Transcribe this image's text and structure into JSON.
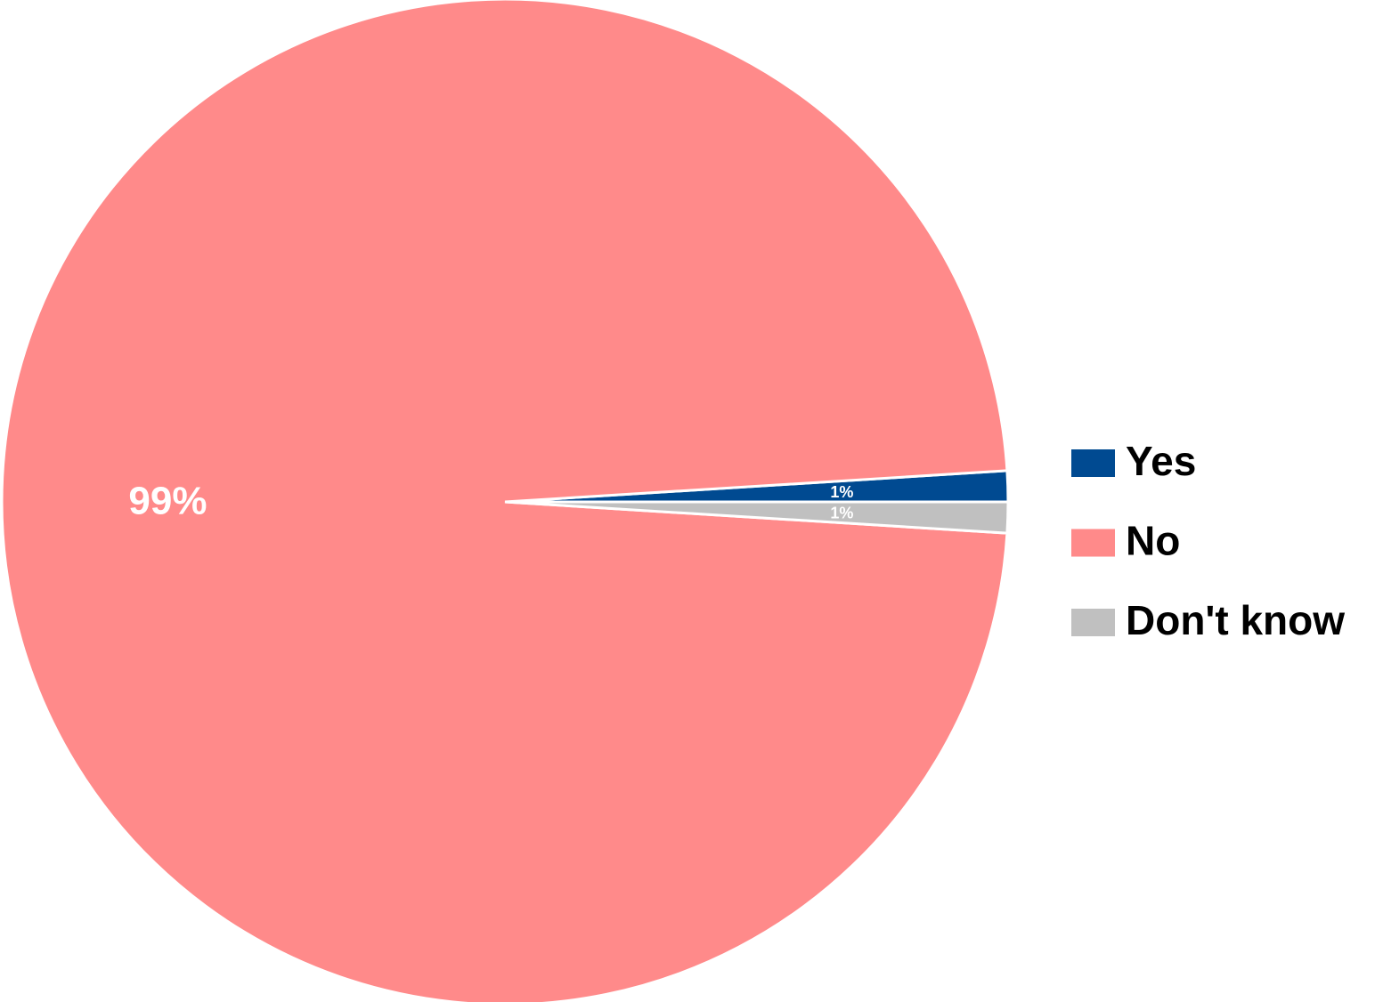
{
  "chart_data": {
    "type": "pie",
    "categories": [
      "Yes",
      "No",
      "Don't know"
    ],
    "values": [
      1,
      99,
      1
    ],
    "value_labels": [
      "1%",
      "99%",
      "1%"
    ],
    "colors": [
      "#004a91",
      "#ff8a8a",
      "#c0c0c0"
    ],
    "legend": "right"
  }
}
